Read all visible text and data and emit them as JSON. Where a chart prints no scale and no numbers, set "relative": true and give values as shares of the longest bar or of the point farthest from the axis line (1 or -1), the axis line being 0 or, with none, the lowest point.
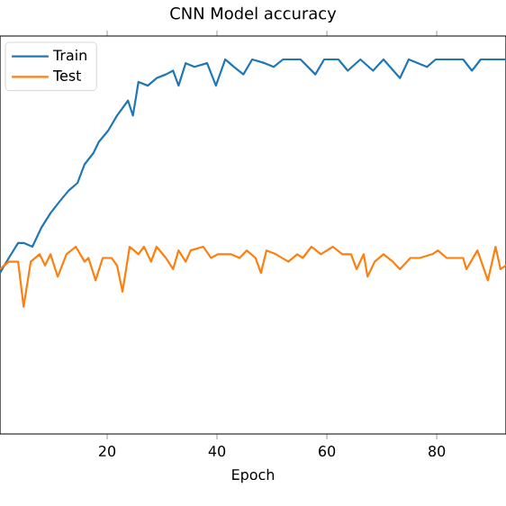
{
  "chart_data": {
    "type": "line",
    "title": "CNN Model accuracy",
    "xlabel": "Epoch",
    "relative": true,
    "xlim": [
      0.5,
      92.6
    ],
    "xticks": [
      20,
      40,
      60,
      80
    ],
    "legend": "top left",
    "series": [
      {
        "name": "Train",
        "color": "#1f77b4",
        "x": [
          0.5,
          2.1,
          3.8,
          4.8,
          6.4,
          8.0,
          9.7,
          11.3,
          13.0,
          14.6,
          15.9,
          17.5,
          18.5,
          20.2,
          21.8,
          23.8,
          24.7,
          25.7,
          27.4,
          29.0,
          30.7,
          32.0,
          33.0,
          34.3,
          35.9,
          38.2,
          39.8,
          41.5,
          43.1,
          44.8,
          46.4,
          48.7,
          50.3,
          52.0,
          55.2,
          57.9,
          59.5,
          62.1,
          63.8,
          66.1,
          68.4,
          70.3,
          73.3,
          74.9,
          78.2,
          79.8,
          84.8,
          86.4,
          88.0,
          92.6
        ],
        "values": [
          0.43,
          0.47,
          0.51,
          0.51,
          0.5,
          0.55,
          0.59,
          0.62,
          0.65,
          0.67,
          0.72,
          0.75,
          0.78,
          0.81,
          0.85,
          0.89,
          0.85,
          0.94,
          0.93,
          0.95,
          0.96,
          0.97,
          0.93,
          0.99,
          0.98,
          0.99,
          0.93,
          1.0,
          0.98,
          0.96,
          1.0,
          0.99,
          0.98,
          1.0,
          1.0,
          0.96,
          1.0,
          1.0,
          0.97,
          1.0,
          0.97,
          1.0,
          0.95,
          1.0,
          0.98,
          1.0,
          1.0,
          0.97,
          1.0,
          1.0
        ]
      },
      {
        "name": "Test",
        "color": "#ff7f0e",
        "x": [
          0.5,
          2.1,
          3.8,
          4.8,
          6.1,
          7.7,
          8.7,
          9.7,
          11.0,
          12.6,
          14.3,
          15.9,
          16.6,
          17.9,
          19.2,
          20.8,
          21.8,
          22.8,
          24.1,
          25.7,
          26.7,
          28.0,
          29.0,
          30.7,
          32.0,
          33.0,
          34.3,
          35.2,
          37.5,
          38.9,
          40.2,
          42.5,
          44.1,
          45.4,
          47.0,
          48.0,
          49.0,
          50.7,
          53.0,
          54.6,
          55.6,
          57.2,
          58.9,
          61.1,
          62.8,
          64.4,
          65.4,
          66.7,
          67.4,
          68.7,
          70.3,
          72.0,
          73.3,
          75.2,
          76.9,
          79.2,
          80.2,
          81.8,
          84.8,
          85.4,
          87.4,
          89.3,
          90.7,
          91.6,
          92.6
        ],
        "values": [
          0.44,
          0.46,
          0.46,
          0.34,
          0.46,
          0.48,
          0.45,
          0.48,
          0.42,
          0.48,
          0.5,
          0.46,
          0.47,
          0.41,
          0.47,
          0.47,
          0.45,
          0.38,
          0.5,
          0.48,
          0.5,
          0.46,
          0.5,
          0.47,
          0.44,
          0.49,
          0.46,
          0.49,
          0.5,
          0.47,
          0.48,
          0.48,
          0.47,
          0.49,
          0.47,
          0.43,
          0.49,
          0.48,
          0.46,
          0.48,
          0.47,
          0.5,
          0.48,
          0.5,
          0.48,
          0.48,
          0.44,
          0.48,
          0.42,
          0.46,
          0.48,
          0.46,
          0.44,
          0.47,
          0.47,
          0.48,
          0.49,
          0.47,
          0.47,
          0.44,
          0.49,
          0.41,
          0.5,
          0.44,
          0.45
        ]
      }
    ]
  }
}
